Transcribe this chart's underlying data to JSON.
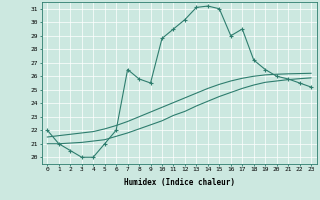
{
  "title": "",
  "xlabel": "Humidex (Indice chaleur)",
  "background_color": "#cce8e0",
  "line_color": "#2e7d6e",
  "xlim": [
    -0.5,
    23.5
  ],
  "ylim": [
    19.5,
    31.5
  ],
  "xticks": [
    0,
    1,
    2,
    3,
    4,
    5,
    6,
    7,
    8,
    9,
    10,
    11,
    12,
    13,
    14,
    15,
    16,
    17,
    18,
    19,
    20,
    21,
    22,
    23
  ],
  "yticks": [
    20,
    21,
    22,
    23,
    24,
    25,
    26,
    27,
    28,
    29,
    30,
    31
  ],
  "series1_x": [
    0,
    1,
    2,
    3,
    4,
    5,
    6,
    7,
    8,
    9,
    10,
    11,
    12,
    13,
    14,
    15,
    16,
    17,
    18,
    19,
    20,
    21,
    22,
    23
  ],
  "series1_y": [
    22,
    21,
    20.5,
    20,
    20,
    21,
    22,
    26.5,
    25.8,
    25.5,
    28.8,
    29.5,
    30.2,
    31.1,
    31.2,
    31.0,
    29.0,
    29.5,
    27.2,
    26.5,
    26.0,
    25.8,
    25.5,
    25.2
  ],
  "series2_x": [
    0,
    1,
    2,
    3,
    4,
    5,
    6,
    7,
    8,
    9,
    10,
    11,
    12,
    13,
    14,
    15,
    16,
    17,
    18,
    19,
    20,
    21,
    22,
    23
  ],
  "series2_y": [
    21.0,
    21.0,
    21.05,
    21.1,
    21.2,
    21.3,
    21.55,
    21.8,
    22.1,
    22.4,
    22.7,
    23.1,
    23.4,
    23.8,
    24.15,
    24.5,
    24.8,
    25.1,
    25.35,
    25.55,
    25.65,
    25.75,
    25.82,
    25.88
  ],
  "series3_x": [
    0,
    1,
    2,
    3,
    4,
    5,
    6,
    7,
    8,
    9,
    10,
    11,
    12,
    13,
    14,
    15,
    16,
    17,
    18,
    19,
    20,
    21,
    22,
    23
  ],
  "series3_y": [
    21.5,
    21.6,
    21.7,
    21.8,
    21.9,
    22.1,
    22.35,
    22.65,
    23.0,
    23.35,
    23.7,
    24.05,
    24.4,
    24.75,
    25.1,
    25.4,
    25.65,
    25.85,
    26.0,
    26.1,
    26.15,
    26.18,
    26.2,
    26.22
  ]
}
